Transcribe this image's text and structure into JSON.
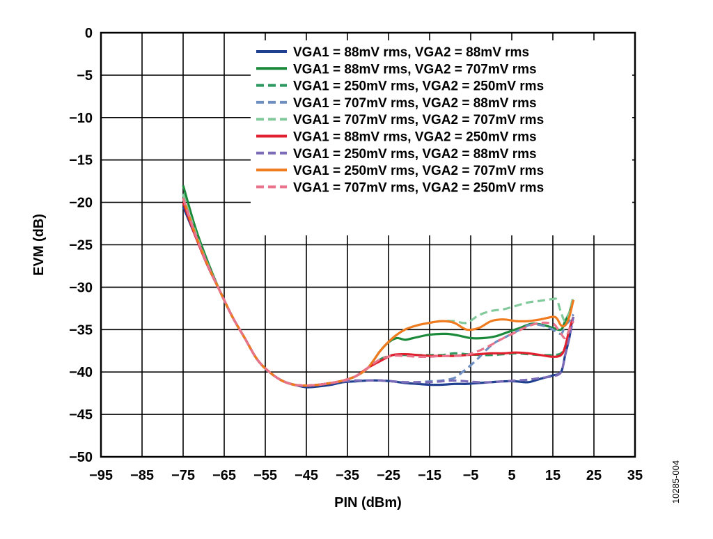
{
  "figure_id": "10285-004",
  "chart_data": {
    "type": "line",
    "xlabel": "PIN (dBm)",
    "ylabel": "EVM (dB)",
    "xlim": [
      -95,
      35
    ],
    "ylim": [
      -50,
      0
    ],
    "xticks": [
      -95,
      -85,
      -75,
      -65,
      -55,
      -45,
      -35,
      -25,
      -15,
      -5,
      5,
      15,
      25,
      35
    ],
    "yticks": [
      0,
      -5,
      -10,
      -15,
      -20,
      -25,
      -30,
      -35,
      -40,
      -45,
      -50
    ],
    "xtick_labels": [
      "−95",
      "−85",
      "−75",
      "−65",
      "−55",
      "−45",
      "−35",
      "−25",
      "−15",
      "−5",
      "5",
      "15",
      "25",
      "35"
    ],
    "ytick_labels": [
      "0",
      "−5",
      "−10",
      "−15",
      "−20",
      "−25",
      "−30",
      "−35",
      "−40",
      "−45",
      "−50"
    ],
    "grid": true,
    "legend_position": "top-right",
    "series": [
      {
        "name": "VGA1 = 88mV rms, VGA2 = 88mV rms",
        "color": "#1f3f8f",
        "dash": "solid",
        "x": [
          -75,
          -72,
          -69,
          -66,
          -63,
          -60,
          -57,
          -54,
          -51,
          -48,
          -45,
          -42,
          -39,
          -36,
          -33,
          -30,
          -27,
          -24,
          -21,
          -18,
          -15,
          -12,
          -9,
          -6,
          -3,
          0,
          3,
          6,
          9,
          12,
          15,
          17,
          18,
          19,
          19.5,
          20
        ],
        "y": [
          -20.5,
          -24,
          -27.5,
          -30.5,
          -33.5,
          -36,
          -38.5,
          -40,
          -41,
          -41.5,
          -41.8,
          -41.7,
          -41.5,
          -41.2,
          -41.1,
          -41,
          -41,
          -41.1,
          -41.3,
          -41.4,
          -41.5,
          -41.5,
          -41.4,
          -41.4,
          -41.3,
          -41.2,
          -41.1,
          -41.1,
          -41.2,
          -40.8,
          -40.4,
          -40,
          -38,
          -36,
          -34.5,
          -33.5
        ]
      },
      {
        "name": "VGA1 = 88mV rms, VGA2 = 707mV rms",
        "color": "#1a8a3a",
        "dash": "solid",
        "x": [
          -75,
          -72,
          -69,
          -66,
          -63,
          -60,
          -57,
          -54,
          -51,
          -48,
          -45,
          -42,
          -39,
          -36,
          -33,
          -30,
          -27,
          -25,
          -23,
          -21,
          -19,
          -15,
          -11,
          -8,
          -5,
          -2,
          1,
          4,
          7,
          10,
          13,
          15,
          17,
          18,
          19,
          20
        ],
        "y": [
          -18,
          -23,
          -27,
          -30.5,
          -33.5,
          -36,
          -38.5,
          -40,
          -41,
          -41.5,
          -41.6,
          -41.5,
          -41.3,
          -41,
          -40.5,
          -39.5,
          -37.5,
          -36.5,
          -36,
          -36.2,
          -36,
          -35.6,
          -35.5,
          -35.7,
          -36,
          -36,
          -35.8,
          -35.3,
          -34.8,
          -34.3,
          -34.5,
          -34.8,
          -35,
          -34,
          -33,
          -31.5
        ]
      },
      {
        "name": "VGA1 = 250mV rms, VGA2 = 250mV rms",
        "color": "#2e9960",
        "dash": "dashed",
        "x": [
          -75,
          -72,
          -69,
          -66,
          -63,
          -60,
          -57,
          -54,
          -51,
          -48,
          -45,
          -42,
          -39,
          -36,
          -33,
          -30,
          -27,
          -24,
          -21,
          -18,
          -15,
          -12,
          -9,
          -6,
          -3,
          0,
          3,
          6,
          9,
          12,
          15,
          17,
          18,
          19,
          20
        ],
        "y": [
          -19,
          -23.5,
          -27.3,
          -30.5,
          -33.5,
          -36,
          -38.5,
          -40,
          -41,
          -41.5,
          -41.6,
          -41.5,
          -41.3,
          -41,
          -40.5,
          -39.5,
          -38.5,
          -38,
          -38,
          -38,
          -38,
          -38,
          -37.8,
          -37.9,
          -38,
          -38,
          -37.9,
          -37.8,
          -37.9,
          -38,
          -38,
          -37.8,
          -37,
          -35,
          -33.5
        ]
      },
      {
        "name": "VGA1 = 707mV rms, VGA2 = 88mV rms",
        "color": "#6e8fc0",
        "dash": "dashed",
        "x": [
          -75,
          -72,
          -69,
          -66,
          -63,
          -60,
          -57,
          -54,
          -51,
          -48,
          -45,
          -42,
          -39,
          -36,
          -33,
          -30,
          -27,
          -24,
          -21,
          -18,
          -15,
          -12,
          -9,
          -7,
          -5,
          -3,
          -1,
          1,
          3,
          5,
          7,
          9,
          11,
          13,
          15,
          17,
          18,
          19,
          20
        ],
        "y": [
          -19.5,
          -23.8,
          -27.4,
          -30.5,
          -33.5,
          -36,
          -38.5,
          -40,
          -41,
          -41.5,
          -41.6,
          -41.5,
          -41.3,
          -41.1,
          -41,
          -41,
          -41,
          -41.1,
          -41.2,
          -41.2,
          -41.1,
          -41,
          -40.7,
          -40,
          -39.2,
          -38.3,
          -37.3,
          -36.5,
          -36,
          -35.5,
          -35,
          -34.5,
          -34.4,
          -34.6,
          -35,
          -35.5,
          -34.5,
          -34,
          -33.2
        ]
      },
      {
        "name": "VGA1 = 707mV rms, VGA2 = 707mV rms",
        "color": "#82c99c",
        "dash": "dashed",
        "x": [
          -75,
          -72,
          -69,
          -66,
          -63,
          -60,
          -57,
          -54,
          -51,
          -48,
          -45,
          -42,
          -39,
          -36,
          -33,
          -30,
          -27,
          -24,
          -21,
          -18,
          -15,
          -12,
          -9,
          -6,
          -3,
          0,
          3,
          6,
          9,
          12,
          15,
          16,
          17,
          18,
          19,
          20
        ],
        "y": [
          -19,
          -23.5,
          -27.3,
          -30.5,
          -33.5,
          -36,
          -38.5,
          -40,
          -41,
          -41.5,
          -41.6,
          -41.5,
          -41.3,
          -41,
          -40.5,
          -39.5,
          -37.5,
          -36,
          -35,
          -34.5,
          -34.2,
          -34,
          -34,
          -34.2,
          -33.3,
          -32.8,
          -32.6,
          -32.2,
          -31.8,
          -31.6,
          -31.4,
          -31.5,
          -33,
          -34,
          -33,
          -31
        ]
      },
      {
        "name": "VGA1 = 88mV rms, VGA2 = 250mV rms",
        "color": "#e0202e",
        "dash": "solid",
        "x": [
          -75,
          -72,
          -69,
          -66,
          -63,
          -60,
          -57,
          -54,
          -51,
          -48,
          -45,
          -42,
          -39,
          -36,
          -33,
          -30,
          -27,
          -24,
          -21,
          -18,
          -15,
          -12,
          -9,
          -6,
          -3,
          0,
          3,
          6,
          9,
          12,
          15,
          17,
          18,
          19,
          20
        ],
        "y": [
          -20,
          -24,
          -27.5,
          -30.5,
          -33.5,
          -36,
          -38.5,
          -40,
          -41,
          -41.5,
          -41.6,
          -41.5,
          -41.3,
          -41,
          -40.5,
          -39.5,
          -38.7,
          -38,
          -37.9,
          -38,
          -38.1,
          -38.1,
          -38.1,
          -38,
          -37.9,
          -37.8,
          -37.8,
          -37.7,
          -37.8,
          -38,
          -38.2,
          -38,
          -37,
          -35,
          -33.5
        ]
      },
      {
        "name": "VGA1 = 250mV rms, VGA2 = 88mV rms",
        "color": "#7b6bb8",
        "dash": "dashed",
        "x": [
          -75,
          -72,
          -69,
          -66,
          -63,
          -60,
          -57,
          -54,
          -51,
          -48,
          -45,
          -42,
          -39,
          -36,
          -33,
          -30,
          -27,
          -24,
          -21,
          -18,
          -15,
          -12,
          -9,
          -6,
          -3,
          0,
          3,
          6,
          9,
          12,
          15,
          17,
          18,
          19,
          20
        ],
        "y": [
          -19.5,
          -23.8,
          -27.4,
          -30.5,
          -33.5,
          -36,
          -38.5,
          -40,
          -41,
          -41.5,
          -41.6,
          -41.5,
          -41.3,
          -41.1,
          -41,
          -41,
          -41,
          -41.1,
          -41.2,
          -41.2,
          -41.2,
          -41.1,
          -41,
          -41.1,
          -41.2,
          -41.2,
          -41.1,
          -41,
          -40.9,
          -40.7,
          -40.5,
          -40,
          -38,
          -36,
          -33.5
        ]
      },
      {
        "name": "VGA1 = 250mV rms, VGA2 = 707mV rms",
        "color": "#f07a1e",
        "dash": "solid",
        "x": [
          -75,
          -72,
          -69,
          -66,
          -63,
          -60,
          -57,
          -54,
          -51,
          -48,
          -45,
          -42,
          -39,
          -36,
          -33,
          -30,
          -27,
          -24,
          -21,
          -18,
          -15,
          -12,
          -9,
          -6,
          -3,
          0,
          3,
          6,
          9,
          12,
          15,
          16,
          17,
          18,
          19,
          20
        ],
        "y": [
          -19.5,
          -23.8,
          -27.4,
          -30.5,
          -33.5,
          -36,
          -38.5,
          -40,
          -41,
          -41.5,
          -41.6,
          -41.5,
          -41.3,
          -41,
          -40.5,
          -39.5,
          -37.5,
          -36,
          -35,
          -34.5,
          -34.2,
          -34,
          -34.2,
          -35,
          -34.8,
          -34,
          -33.8,
          -34,
          -34,
          -33.8,
          -33.5,
          -33.7,
          -34.5,
          -34.5,
          -33.5,
          -31.5
        ]
      },
      {
        "name": "VGA1 = 707mV rms, VGA2 = 250mV rms",
        "color": "#e8738a",
        "dash": "dashed",
        "x": [
          -75,
          -72,
          -69,
          -66,
          -63,
          -60,
          -57,
          -54,
          -51,
          -48,
          -45,
          -42,
          -39,
          -36,
          -33,
          -30,
          -27,
          -24,
          -21,
          -18,
          -15,
          -12,
          -9,
          -6,
          -3,
          0,
          3,
          6,
          9,
          12,
          15,
          16,
          17,
          18,
          19,
          20
        ],
        "y": [
          -19.5,
          -23.8,
          -27.4,
          -30.5,
          -33.5,
          -36,
          -38.5,
          -40,
          -41,
          -41.5,
          -41.6,
          -41.5,
          -41.3,
          -41,
          -40.5,
          -39.5,
          -38.5,
          -38.1,
          -38.1,
          -38.2,
          -38.2,
          -38.1,
          -38.1,
          -38,
          -37.5,
          -36.8,
          -36,
          -35.3,
          -34.6,
          -34.2,
          -34.3,
          -34.8,
          -35.5,
          -36,
          -35,
          -34
        ]
      }
    ]
  }
}
